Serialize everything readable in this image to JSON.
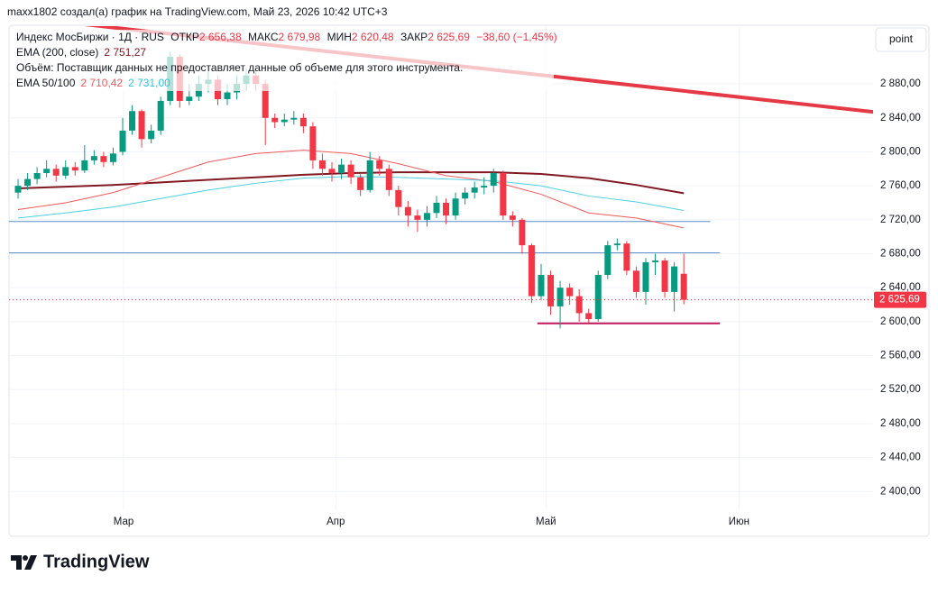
{
  "header": "maxx1802 создал(а) график на TradingView.com, Май 23, 2026 10:42 UTC+3",
  "button": "point",
  "brand": "TradingView",
  "chart_data": {
    "type": "candlestick",
    "legend": {
      "name": "Индекс МосБиржи · 1Д · RUS",
      "fields": [
        {
          "label": "ОТКР",
          "value": "2 656,38"
        },
        {
          "label": "МАКС",
          "value": "2 679,98"
        },
        {
          "label": "МИН",
          "value": "2 620,48"
        },
        {
          "label": "ЗАКР",
          "value": "2 625,69"
        }
      ],
      "change": "−38,60 (−1,45%)",
      "volume_note": "Объём: Поставщик данных не предоставляет данные об объеме для этого инструмента."
    },
    "open": [
      2752,
      2760,
      2768,
      2775,
      2780,
      2772,
      2782,
      2778,
      2790,
      2795,
      2788,
      2800,
      2825,
      2848,
      2815,
      2825,
      2860,
      2912,
      2860,
      2865,
      2880,
      2885,
      2862,
      2870,
      2880,
      2890,
      2880,
      2840,
      2835,
      2838,
      2840,
      2830,
      2790,
      2780,
      2775,
      2785,
      2770,
      2755,
      2790,
      2780,
      2755,
      2735,
      2725,
      2720,
      2728,
      2740,
      2725,
      2745,
      2752,
      2758,
      2760,
      2775,
      2725,
      2720,
      2690,
      2630,
      2655,
      2618,
      2640,
      2630,
      2610,
      2603,
      2655,
      2690,
      2692,
      2660,
      2635,
      2670,
      2672,
      2635,
      2656.38
    ],
    "high": [
      2768,
      2775,
      2782,
      2790,
      2785,
      2790,
      2788,
      2808,
      2802,
      2800,
      2805,
      2840,
      2855,
      2850,
      2832,
      2865,
      2918,
      2915,
      2880,
      2890,
      2895,
      2890,
      2880,
      2890,
      2898,
      2895,
      2885,
      2845,
      2845,
      2848,
      2845,
      2835,
      2798,
      2788,
      2792,
      2790,
      2775,
      2800,
      2795,
      2785,
      2760,
      2742,
      2732,
      2736,
      2748,
      2745,
      2752,
      2758,
      2765,
      2770,
      2780,
      2778,
      2730,
      2722,
      2692,
      2668,
      2660,
      2648,
      2645,
      2638,
      2615,
      2660,
      2695,
      2698,
      2695,
      2665,
      2675,
      2680,
      2675,
      2670,
      2679.98
    ],
    "low": [
      2745,
      2755,
      2762,
      2770,
      2765,
      2768,
      2772,
      2775,
      2785,
      2782,
      2784,
      2796,
      2820,
      2805,
      2810,
      2820,
      2855,
      2852,
      2855,
      2860,
      2870,
      2855,
      2855,
      2862,
      2872,
      2872,
      2808,
      2828,
      2830,
      2832,
      2822,
      2780,
      2772,
      2765,
      2768,
      2762,
      2748,
      2752,
      2772,
      2748,
      2725,
      2712,
      2706,
      2712,
      2722,
      2715,
      2720,
      2738,
      2745,
      2750,
      2752,
      2720,
      2712,
      2680,
      2622,
      2625,
      2608,
      2592,
      2620,
      2600,
      2598,
      2600,
      2650,
      2684,
      2655,
      2628,
      2620,
      2655,
      2628,
      2612,
      2620.48
    ],
    "close": [
      2760,
      2768,
      2775,
      2780,
      2772,
      2782,
      2778,
      2790,
      2795,
      2788,
      2798,
      2825,
      2848,
      2815,
      2825,
      2860,
      2912,
      2860,
      2865,
      2880,
      2885,
      2862,
      2870,
      2880,
      2890,
      2880,
      2840,
      2835,
      2838,
      2840,
      2830,
      2790,
      2780,
      2775,
      2785,
      2770,
      2755,
      2790,
      2780,
      2755,
      2735,
      2725,
      2720,
      2728,
      2740,
      2725,
      2745,
      2752,
      2758,
      2760,
      2775,
      2725,
      2720,
      2690,
      2630,
      2655,
      2618,
      2640,
      2630,
      2610,
      2603,
      2655,
      2690,
      2692,
      2660,
      2635,
      2670,
      2672,
      2635,
      2665,
      2625.69
    ],
    "up_color": "#089981",
    "down_color": "#f23645",
    "lines": [
      {
        "name": "EMA (200, close)",
        "value_label": "2 751,27",
        "color": "#801922",
        "width": 2,
        "x": [
          0,
          5,
          10,
          15,
          20,
          25,
          30,
          35,
          40,
          45,
          50,
          55,
          60,
          65,
          70
        ],
        "values": [
          2757,
          2759,
          2761,
          2764,
          2767,
          2770,
          2773,
          2775,
          2776,
          2776,
          2776,
          2774,
          2769,
          2761,
          2751.27
        ]
      },
      {
        "name": "EMA 50/100",
        "value_label": "2 710,42",
        "color": "#f05a5a",
        "width": 1,
        "x": [
          0,
          5,
          10,
          15,
          20,
          25,
          30,
          35,
          40,
          45,
          50,
          55,
          60,
          65,
          70
        ],
        "values": [
          2732,
          2740,
          2752,
          2770,
          2788,
          2798,
          2802,
          2798,
          2786,
          2772,
          2765,
          2750,
          2728,
          2722,
          2710.42
        ]
      },
      {
        "value_label": "2 731,00",
        "color": "#4dd0e1",
        "width": 1,
        "x": [
          0,
          5,
          10,
          15,
          20,
          25,
          30,
          35,
          40,
          45,
          50,
          55,
          60,
          65,
          70
        ],
        "values": [
          2722,
          2728,
          2735,
          2745,
          2755,
          2763,
          2769,
          2771,
          2770,
          2768,
          2766,
          2760,
          2748,
          2741,
          2731
        ]
      }
    ],
    "hlines": [
      {
        "value": 2718,
        "x": [
          -0.95,
          72.8
        ],
        "color": "#5b8fc9",
        "width": 1
      },
      {
        "value": 2681,
        "x": [
          -0.95,
          73.8
        ],
        "color": "#5b8fc9",
        "width": 1
      },
      {
        "value": 2598,
        "x": [
          54.6,
          73.8
        ],
        "color": "#c2185b",
        "width": 2
      }
    ],
    "trendline": {
      "x": [
        7.1,
        89.9
      ],
      "values": [
        2950,
        2847
      ],
      "color": "#e53945",
      "width": 4
    },
    "xlim": [
      -0.95,
      89.9
    ],
    "xticks": [
      {
        "value": 11.1,
        "label": "Мар"
      },
      {
        "value": 33.4,
        "label": "Апр"
      },
      {
        "value": 55.5,
        "label": "Май"
      },
      {
        "value": 75.8,
        "label": "Июн"
      }
    ],
    "ylim": [
      2379,
      2947
    ],
    "yticks": [
      {
        "value": 2400,
        "label": "2 400,00"
      },
      {
        "value": 2440,
        "label": "2 440,00"
      },
      {
        "value": 2480,
        "label": "2 480,00"
      },
      {
        "value": 2520,
        "label": "2 520,00"
      },
      {
        "value": 2560,
        "label": "2 560,00"
      },
      {
        "value": 2600,
        "label": "2 600,00"
      },
      {
        "value": 2640,
        "label": "2 640,00"
      },
      {
        "value": 2680,
        "label": "2 680,00"
      },
      {
        "value": 2720,
        "label": "2 720,00"
      },
      {
        "value": 2760,
        "label": "2 760,00"
      },
      {
        "value": 2800,
        "label": "2 800,00"
      },
      {
        "value": 2840,
        "label": "2 840,00"
      },
      {
        "value": 2880,
        "label": "2 880,00"
      }
    ],
    "grid": true
  }
}
